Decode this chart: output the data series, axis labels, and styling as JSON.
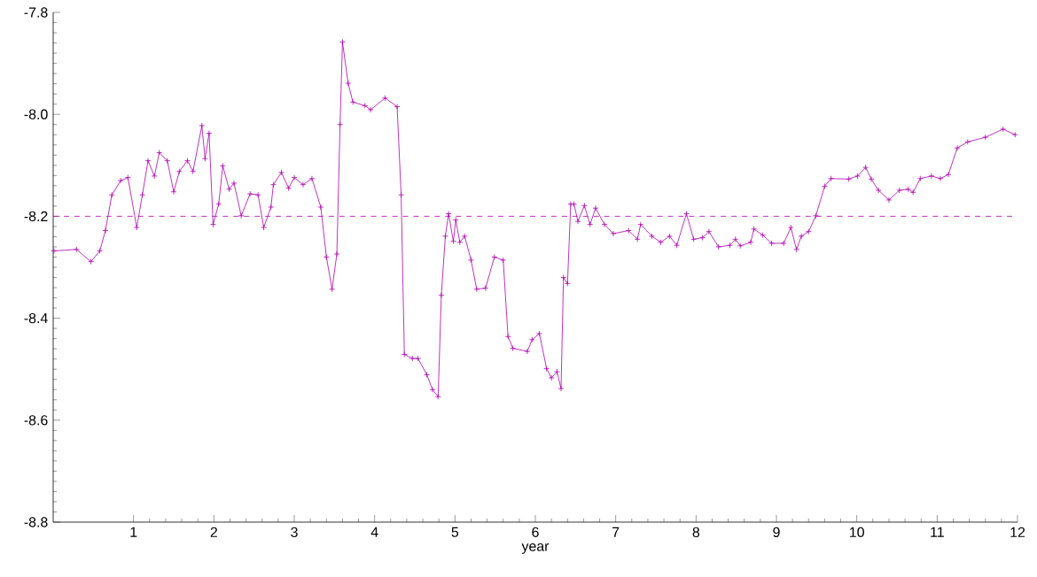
{
  "chart_data": {
    "type": "line",
    "xlabel": "year",
    "color": "#b000b0",
    "marker": "cross",
    "line_style": "solid",
    "grid": false,
    "xlim": [
      0,
      12
    ],
    "xticks": [
      1,
      2,
      3,
      4,
      5,
      6,
      7,
      8,
      9,
      10,
      11,
      12
    ],
    "ylim": [
      -8.8,
      -7.8
    ],
    "yticks": [
      {
        "value": -8.8,
        "label": "-8.8"
      },
      {
        "value": -8.6,
        "label": "-8.6"
      },
      {
        "value": -8.4,
        "label": "-8.4"
      },
      {
        "value": -8.2,
        "label": "-8.2"
      },
      {
        "value": -8.0,
        "label": "-8.0"
      },
      {
        "value": -7.8,
        "label": "-7.8"
      }
    ],
    "ref_lines": [
      {
        "axis": "y",
        "value": -8.2,
        "color": "#b000b0",
        "line_style": "dashed"
      }
    ],
    "x": [
      0.01,
      0.29,
      0.47,
      0.58,
      0.65,
      0.73,
      0.84,
      0.93,
      1.04,
      1.11,
      1.18,
      1.26,
      1.32,
      1.42,
      1.5,
      1.57,
      1.67,
      1.74,
      1.85,
      1.89,
      1.94,
      1.99,
      2.06,
      2.11,
      2.19,
      2.25,
      2.34,
      2.45,
      2.55,
      2.62,
      2.71,
      2.74,
      2.84,
      2.93,
      3.0,
      3.11,
      3.22,
      3.33,
      3.4,
      3.47,
      3.53,
      3.57,
      3.6,
      3.67,
      3.73,
      3.88,
      3.95,
      4.13,
      4.28,
      4.33,
      4.37,
      4.47,
      4.54,
      4.65,
      4.72,
      4.79,
      4.83,
      4.88,
      4.92,
      4.98,
      5.01,
      5.06,
      5.12,
      5.2,
      5.27,
      5.38,
      5.49,
      5.6,
      5.66,
      5.72,
      5.9,
      5.96,
      6.05,
      6.14,
      6.2,
      6.27,
      6.32,
      6.35,
      6.4,
      6.44,
      6.48,
      6.53,
      6.61,
      6.68,
      6.75,
      6.86,
      6.97,
      7.16,
      7.27,
      7.31,
      7.45,
      7.56,
      7.67,
      7.76,
      7.88,
      7.97,
      8.08,
      8.16,
      8.28,
      8.42,
      8.49,
      8.55,
      8.68,
      8.72,
      8.83,
      8.94,
      9.09,
      9.18,
      9.25,
      9.31,
      9.4,
      9.49,
      9.6,
      9.68,
      9.9,
      10.01,
      10.11,
      10.18,
      10.27,
      10.4,
      10.53,
      10.64,
      10.7,
      10.79,
      10.93,
      11.04,
      11.14,
      11.25,
      11.38,
      11.6,
      11.82,
      11.97
    ],
    "values": [
      -8.268,
      -8.265,
      -8.289,
      -8.268,
      -8.228,
      -8.158,
      -8.13,
      -8.124,
      -8.222,
      -8.158,
      -8.091,
      -8.121,
      -8.075,
      -8.091,
      -8.152,
      -8.112,
      -8.091,
      -8.112,
      -8.022,
      -8.087,
      -8.037,
      -8.216,
      -8.176,
      -8.101,
      -8.147,
      -8.135,
      -8.199,
      -8.156,
      -8.158,
      -8.222,
      -8.182,
      -8.138,
      -8.114,
      -8.145,
      -8.124,
      -8.138,
      -8.126,
      -8.182,
      -8.28,
      -8.343,
      -8.274,
      -8.02,
      -7.858,
      -7.939,
      -7.976,
      -7.983,
      -7.991,
      -7.968,
      -7.985,
      -8.158,
      -8.471,
      -8.479,
      -8.479,
      -8.511,
      -8.54,
      -8.554,
      -8.355,
      -8.239,
      -8.195,
      -8.249,
      -8.207,
      -8.251,
      -8.239,
      -8.286,
      -8.343,
      -8.341,
      -8.28,
      -8.286,
      -8.436,
      -8.459,
      -8.465,
      -8.442,
      -8.43,
      -8.499,
      -8.517,
      -8.505,
      -8.538,
      -8.32,
      -8.332,
      -8.176,
      -8.176,
      -8.21,
      -8.179,
      -8.216,
      -8.184,
      -8.216,
      -8.234,
      -8.228,
      -8.245,
      -8.216,
      -8.239,
      -8.251,
      -8.239,
      -8.257,
      -8.195,
      -8.245,
      -8.242,
      -8.23,
      -8.26,
      -8.257,
      -8.245,
      -8.258,
      -8.251,
      -8.225,
      -8.237,
      -8.253,
      -8.253,
      -8.222,
      -8.265,
      -8.239,
      -8.23,
      -8.199,
      -8.141,
      -8.126,
      -8.127,
      -8.121,
      -8.104,
      -8.127,
      -8.149,
      -8.168,
      -8.149,
      -8.147,
      -8.153,
      -8.126,
      -8.121,
      -8.126,
      -8.118,
      -8.066,
      -8.054,
      -8.045,
      -8.029,
      -8.04
    ]
  }
}
